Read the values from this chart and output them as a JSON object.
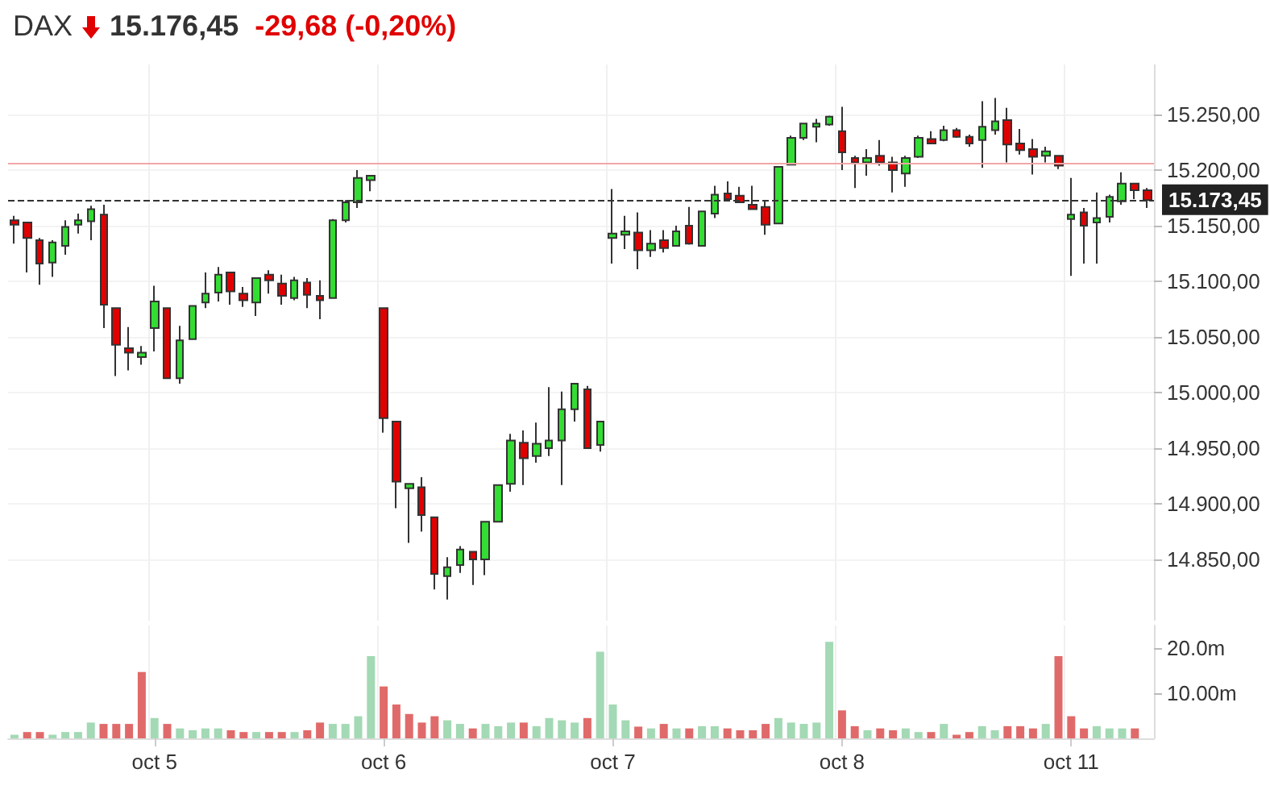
{
  "chart_data": [
    {
      "type": "candlestick",
      "title": "DAX",
      "subtitle": "15.176,45",
      "annotations": [
        "-29,68 (-0,20%)"
      ],
      "categories": [
        null,
        null,
        null,
        null,
        null,
        null,
        null,
        null,
        null,
        null,
        null,
        null,
        null,
        null,
        null,
        null,
        null,
        null,
        null,
        null,
        null,
        null,
        null,
        null,
        null,
        null,
        null,
        null,
        null,
        null,
        null,
        null,
        null,
        null,
        null,
        null,
        null,
        null,
        null,
        null,
        null,
        null,
        null,
        null,
        null,
        null,
        null,
        null,
        null,
        null,
        null,
        null,
        null,
        null,
        null,
        null,
        null,
        null,
        null,
        null,
        null,
        null,
        null,
        null,
        null,
        null,
        null,
        null,
        null,
        null,
        null,
        null,
        null,
        null,
        null,
        null,
        null,
        null,
        null,
        null,
        null,
        null,
        null,
        null,
        null,
        null,
        null,
        null,
        null,
        null
      ],
      "series": [
        {
          "type": "candlestick",
          "ohlc": [
            [
              15155,
              15159,
              15134,
              15151
            ],
            [
              15153,
              15153,
              15108,
              15139
            ],
            [
              15137,
              15139,
              15097,
              15116
            ],
            [
              15117,
              15137,
              15104,
              15135
            ],
            [
              15132,
              15155,
              15124,
              15149
            ],
            [
              15151,
              15161,
              15143,
              15155
            ],
            [
              15154,
              15168,
              15137,
              15165
            ],
            [
              15160,
              15169,
              15058,
              15079
            ],
            [
              15076,
              15076,
              15015,
              15043
            ],
            [
              15040,
              15059,
              15020,
              15036
            ],
            [
              15032,
              15042,
              15025,
              15036
            ],
            [
              15058,
              15096,
              15037,
              15082
            ],
            [
              15076,
              15076,
              15013,
              15013
            ],
            [
              15013,
              15060,
              15008,
              15047
            ],
            [
              15048,
              15078,
              15048,
              15078
            ],
            [
              15081,
              15108,
              15076,
              15089
            ],
            [
              15090,
              15113,
              15082,
              15106
            ],
            [
              15108,
              15108,
              15079,
              15091
            ],
            [
              15089,
              15095,
              15077,
              15083
            ],
            [
              15081,
              15103,
              15069,
              15103
            ],
            [
              15106,
              15110,
              15089,
              15101
            ],
            [
              15098,
              15106,
              15079,
              15087
            ],
            [
              15085,
              15104,
              15083,
              15101
            ],
            [
              15099,
              15103,
              15076,
              15088
            ],
            [
              15087,
              15101,
              15066,
              15083
            ],
            [
              15085,
              15156,
              15085,
              15155
            ],
            [
              15155,
              15173,
              15153,
              15171
            ],
            [
              15171,
              15200,
              15166,
              15193
            ],
            [
              15191,
              15195,
              15181,
              15195
            ],
            [
              15076,
              15076,
              14964,
              14977
            ],
            [
              14974,
              14974,
              14896,
              14920
            ],
            [
              14914,
              14918,
              14865,
              14918
            ],
            [
              14915,
              14924,
              14875,
              14890
            ],
            [
              14888,
              14888,
              14823,
              14837
            ],
            [
              14835,
              14852,
              14814,
              14843
            ],
            [
              14845,
              14862,
              14838,
              14859
            ],
            [
              14857,
              14857,
              14827,
              14850
            ],
            [
              14850,
              14884,
              14836,
              14884
            ],
            [
              14884,
              14917,
              14884,
              14917
            ],
            [
              14918,
              14963,
              14911,
              14957
            ],
            [
              14955,
              14966,
              14917,
              14941
            ],
            [
              14943,
              14973,
              14937,
              14954
            ],
            [
              14950,
              15005,
              14943,
              14957
            ],
            [
              14957,
              15001,
              14917,
              14985
            ],
            [
              14985,
              15008,
              14974,
              15008
            ],
            [
              15003,
              15006,
              14950,
              14950
            ],
            [
              14953,
              14974,
              14947,
              14974
            ],
            [
              15139,
              15183,
              15116,
              15143
            ],
            [
              15142,
              15159,
              15129,
              15145
            ],
            [
              15144,
              15162,
              15111,
              15128
            ],
            [
              15128,
              15146,
              15122,
              15134
            ],
            [
              15137,
              15146,
              15126,
              15130
            ],
            [
              15132,
              15150,
              15132,
              15145
            ],
            [
              15150,
              15167,
              15133,
              15134
            ],
            [
              15132,
              15163,
              15132,
              15163
            ],
            [
              15161,
              15186,
              15157,
              15178
            ],
            [
              15179,
              15190,
              15174,
              15174
            ],
            [
              15177,
              15185,
              15171,
              15171
            ],
            [
              15169,
              15186,
              15165,
              15165
            ],
            [
              15167,
              15173,
              15142,
              15151
            ],
            [
              15152,
              15203,
              15152,
              15203
            ],
            [
              15205,
              15231,
              15205,
              15229
            ],
            [
              15229,
              15242,
              15227,
              15242
            ],
            [
              15239,
              15246,
              15225,
              15242
            ],
            [
              15241,
              15249,
              15240,
              15248
            ],
            [
              15235,
              15257,
              15200,
              15216
            ],
            [
              15211,
              15213,
              15184,
              15207
            ],
            [
              15207,
              15219,
              15195,
              15211
            ],
            [
              15213,
              15227,
              15204,
              15207
            ],
            [
              15207,
              15212,
              15180,
              15200
            ],
            [
              15197,
              15213,
              15185,
              15211
            ],
            [
              15212,
              15231,
              15211,
              15229
            ],
            [
              15228,
              15235,
              15224,
              15224
            ],
            [
              15227,
              15240,
              15226,
              15236
            ],
            [
              15236,
              15238,
              15229,
              15230
            ],
            [
              15230,
              15232,
              15221,
              15224
            ],
            [
              15227,
              15262,
              15202,
              15239
            ],
            [
              15236,
              15265,
              15232,
              15244
            ],
            [
              15245,
              15256,
              15207,
              15223
            ],
            [
              15224,
              15237,
              15214,
              15218
            ],
            [
              15219,
              15228,
              15196,
              15212
            ],
            [
              15213,
              15221,
              15207,
              15217
            ],
            [
              15213,
              15213,
              15201,
              15204
            ],
            [
              15156,
              15193,
              15105,
              15160
            ],
            [
              15162,
              15166,
              15116,
              15150
            ],
            [
              15153,
              15180,
              15116,
              15157
            ],
            [
              15158,
              15178,
              15153,
              15176
            ],
            [
              15172,
              15198,
              15169,
              15188
            ],
            [
              15188,
              15188,
              15174,
              15182
            ],
            [
              15182,
              15184,
              15166,
              15173
            ]
          ],
          "colors": [
            "#e00000",
            "#e00000",
            "#e00000",
            "#33dd33",
            "#33dd33",
            "#33dd33",
            "#33dd33",
            "#e00000",
            "#e00000",
            "#e00000",
            "#33dd33",
            "#33dd33",
            "#e00000",
            "#33dd33",
            "#33dd33",
            "#33dd33",
            "#33dd33",
            "#e00000",
            "#e00000",
            "#33dd33",
            "#e00000",
            "#e00000",
            "#33dd33",
            "#e00000",
            "#e00000",
            "#33dd33",
            "#33dd33",
            "#33dd33",
            "#33dd33",
            "#e00000",
            "#e00000",
            "#33dd33",
            "#e00000",
            "#e00000",
            "#33dd33",
            "#33dd33",
            "#e00000",
            "#33dd33",
            "#33dd33",
            "#33dd33",
            "#e00000",
            "#33dd33",
            "#33dd33",
            "#33dd33",
            "#33dd33",
            "#e00000",
            "#33dd33",
            "#33dd33",
            "#33dd33",
            "#e00000",
            "#33dd33",
            "#e00000",
            "#33dd33",
            "#e00000",
            "#33dd33",
            "#33dd33",
            "#e00000",
            "#e00000",
            "#e00000",
            "#e00000",
            "#33dd33",
            "#33dd33",
            "#33dd33",
            "#33dd33",
            "#33dd33",
            "#e00000",
            "#e00000",
            "#33dd33",
            "#e00000",
            "#e00000",
            "#33dd33",
            "#33dd33",
            "#e00000",
            "#33dd33",
            "#e00000",
            "#e00000",
            "#33dd33",
            "#33dd33",
            "#e00000",
            "#e00000",
            "#e00000",
            "#33dd33",
            "#e00000",
            "#33dd33",
            "#e00000",
            "#33dd33",
            "#33dd33",
            "#33dd33",
            "#e00000",
            "#e00000"
          ]
        }
      ],
      "ylim": [
        14795,
        15295
      ],
      "yticks": [
        {
          "value": 14850,
          "label": "14.850,00"
        },
        {
          "value": 14900,
          "label": "14.900,00"
        },
        {
          "value": 14950,
          "label": "14.950,00"
        },
        {
          "value": 15000,
          "label": "15.000,00"
        },
        {
          "value": 15050,
          "label": "15.050,00"
        },
        {
          "value": 15100,
          "label": "15.100,00"
        },
        {
          "value": 15150,
          "label": "15.150,00"
        },
        {
          "value": 15200,
          "label": "15.200,00"
        },
        {
          "value": 15250,
          "label": "15.250,00"
        }
      ],
      "ref_lines": [
        {
          "axis": "y",
          "value": 15206,
          "color": "#f4a6a6",
          "line_style": "solid"
        },
        {
          "axis": "y",
          "value": 15173.45,
          "label": "15.173,45",
          "color": "#333333",
          "line_style": "dashed"
        }
      ],
      "grid": true,
      "tick_labels": "y"
    },
    {
      "type": "bar",
      "categories": [
        null,
        null,
        null,
        null,
        null,
        null,
        null,
        null,
        null,
        null,
        null,
        "oct 5",
        null,
        null,
        null,
        null,
        null,
        null,
        null,
        null,
        null,
        null,
        null,
        null,
        null,
        null,
        null,
        null,
        null,
        "oct 6",
        null,
        null,
        null,
        null,
        null,
        null,
        null,
        null,
        null,
        null,
        null,
        null,
        null,
        null,
        null,
        null,
        null,
        "oct 7",
        null,
        null,
        null,
        null,
        null,
        null,
        null,
        null,
        null,
        null,
        null,
        null,
        null,
        null,
        null,
        null,
        null,
        "oct 8",
        null,
        null,
        null,
        null,
        null,
        null,
        null,
        null,
        null,
        null,
        null,
        null,
        null,
        null,
        null,
        null,
        null,
        "oct 11",
        null,
        null,
        null,
        null,
        null,
        null
      ],
      "series": [
        {
          "values": [
            0.8,
            1.4,
            1.4,
            0.8,
            1.4,
            1.4,
            3.5,
            3.2,
            3.2,
            3.2,
            14.7,
            4.5,
            3.2,
            2.2,
            1.8,
            2.2,
            2.2,
            1.8,
            1.4,
            1.4,
            1.4,
            1.4,
            1.4,
            1.8,
            3.5,
            3.2,
            3.2,
            4.9,
            18.2,
            11.5,
            7.5,
            5.4,
            3.5,
            4.9,
            4.0,
            3.2,
            2.2,
            3.2,
            2.7,
            3.5,
            3.5,
            2.7,
            4.5,
            4.0,
            3.5,
            4.5,
            19.2,
            7.5,
            4.0,
            2.6,
            2.2,
            3.2,
            2.2,
            2.2,
            2.7,
            2.7,
            2.2,
            1.8,
            1.8,
            3.2,
            4.5,
            3.5,
            3.2,
            3.5,
            21.4,
            6.2,
            2.7,
            1.8,
            2.2,
            1.8,
            2.2,
            1.4,
            1.4,
            3.2,
            0.8,
            1.4,
            2.7,
            1.8,
            2.7,
            2.7,
            2.2,
            3.2,
            18.2,
            4.9,
            2.2,
            2.7,
            2.2,
            2.2,
            2.2,
            null
          ],
          "colors": [
            "#a3d9b4",
            "#e06a6a",
            "#e06a6a",
            "#a3d9b4",
            "#a3d9b4",
            "#a3d9b4",
            "#a3d9b4",
            "#e06a6a",
            "#e06a6a",
            "#e06a6a",
            "#e06a6a",
            "#a3d9b4",
            "#e06a6a",
            "#a3d9b4",
            "#a3d9b4",
            "#a3d9b4",
            "#a3d9b4",
            "#e06a6a",
            "#e06a6a",
            "#a3d9b4",
            "#e06a6a",
            "#e06a6a",
            "#a3d9b4",
            "#e06a6a",
            "#e06a6a",
            "#a3d9b4",
            "#a3d9b4",
            "#a3d9b4",
            "#a3d9b4",
            "#e06a6a",
            "#e06a6a",
            "#e06a6a",
            "#e06a6a",
            "#e06a6a",
            "#a3d9b4",
            "#a3d9b4",
            "#e06a6a",
            "#a3d9b4",
            "#a3d9b4",
            "#a3d9b4",
            "#e06a6a",
            "#a3d9b4",
            "#a3d9b4",
            "#a3d9b4",
            "#a3d9b4",
            "#e06a6a",
            "#a3d9b4",
            "#a3d9b4",
            "#a3d9b4",
            "#e06a6a",
            "#a3d9b4",
            "#e06a6a",
            "#a3d9b4",
            "#e06a6a",
            "#a3d9b4",
            "#a3d9b4",
            "#e06a6a",
            "#e06a6a",
            "#e06a6a",
            "#e06a6a",
            "#a3d9b4",
            "#a3d9b4",
            "#a3d9b4",
            "#a3d9b4",
            "#a3d9b4",
            "#e06a6a",
            "#e06a6a",
            "#a3d9b4",
            "#e06a6a",
            "#e06a6a",
            "#a3d9b4",
            "#a3d9b4",
            "#e06a6a",
            "#a3d9b4",
            "#e06a6a",
            "#e06a6a",
            "#a3d9b4",
            "#a3d9b4",
            "#e06a6a",
            "#e06a6a",
            "#e06a6a",
            "#a3d9b4",
            "#e06a6a",
            "#e06a6a",
            "#e06a6a",
            "#a3d9b4",
            "#a3d9b4",
            "#a3d9b4",
            "#e06a6a",
            "#e06a6a"
          ]
        }
      ],
      "ylim": [
        0,
        25
      ],
      "yticks": [
        {
          "value": 10,
          "label": "10.00m"
        },
        {
          "value": 20,
          "label": "20.0m"
        }
      ],
      "grid": "x"
    }
  ]
}
